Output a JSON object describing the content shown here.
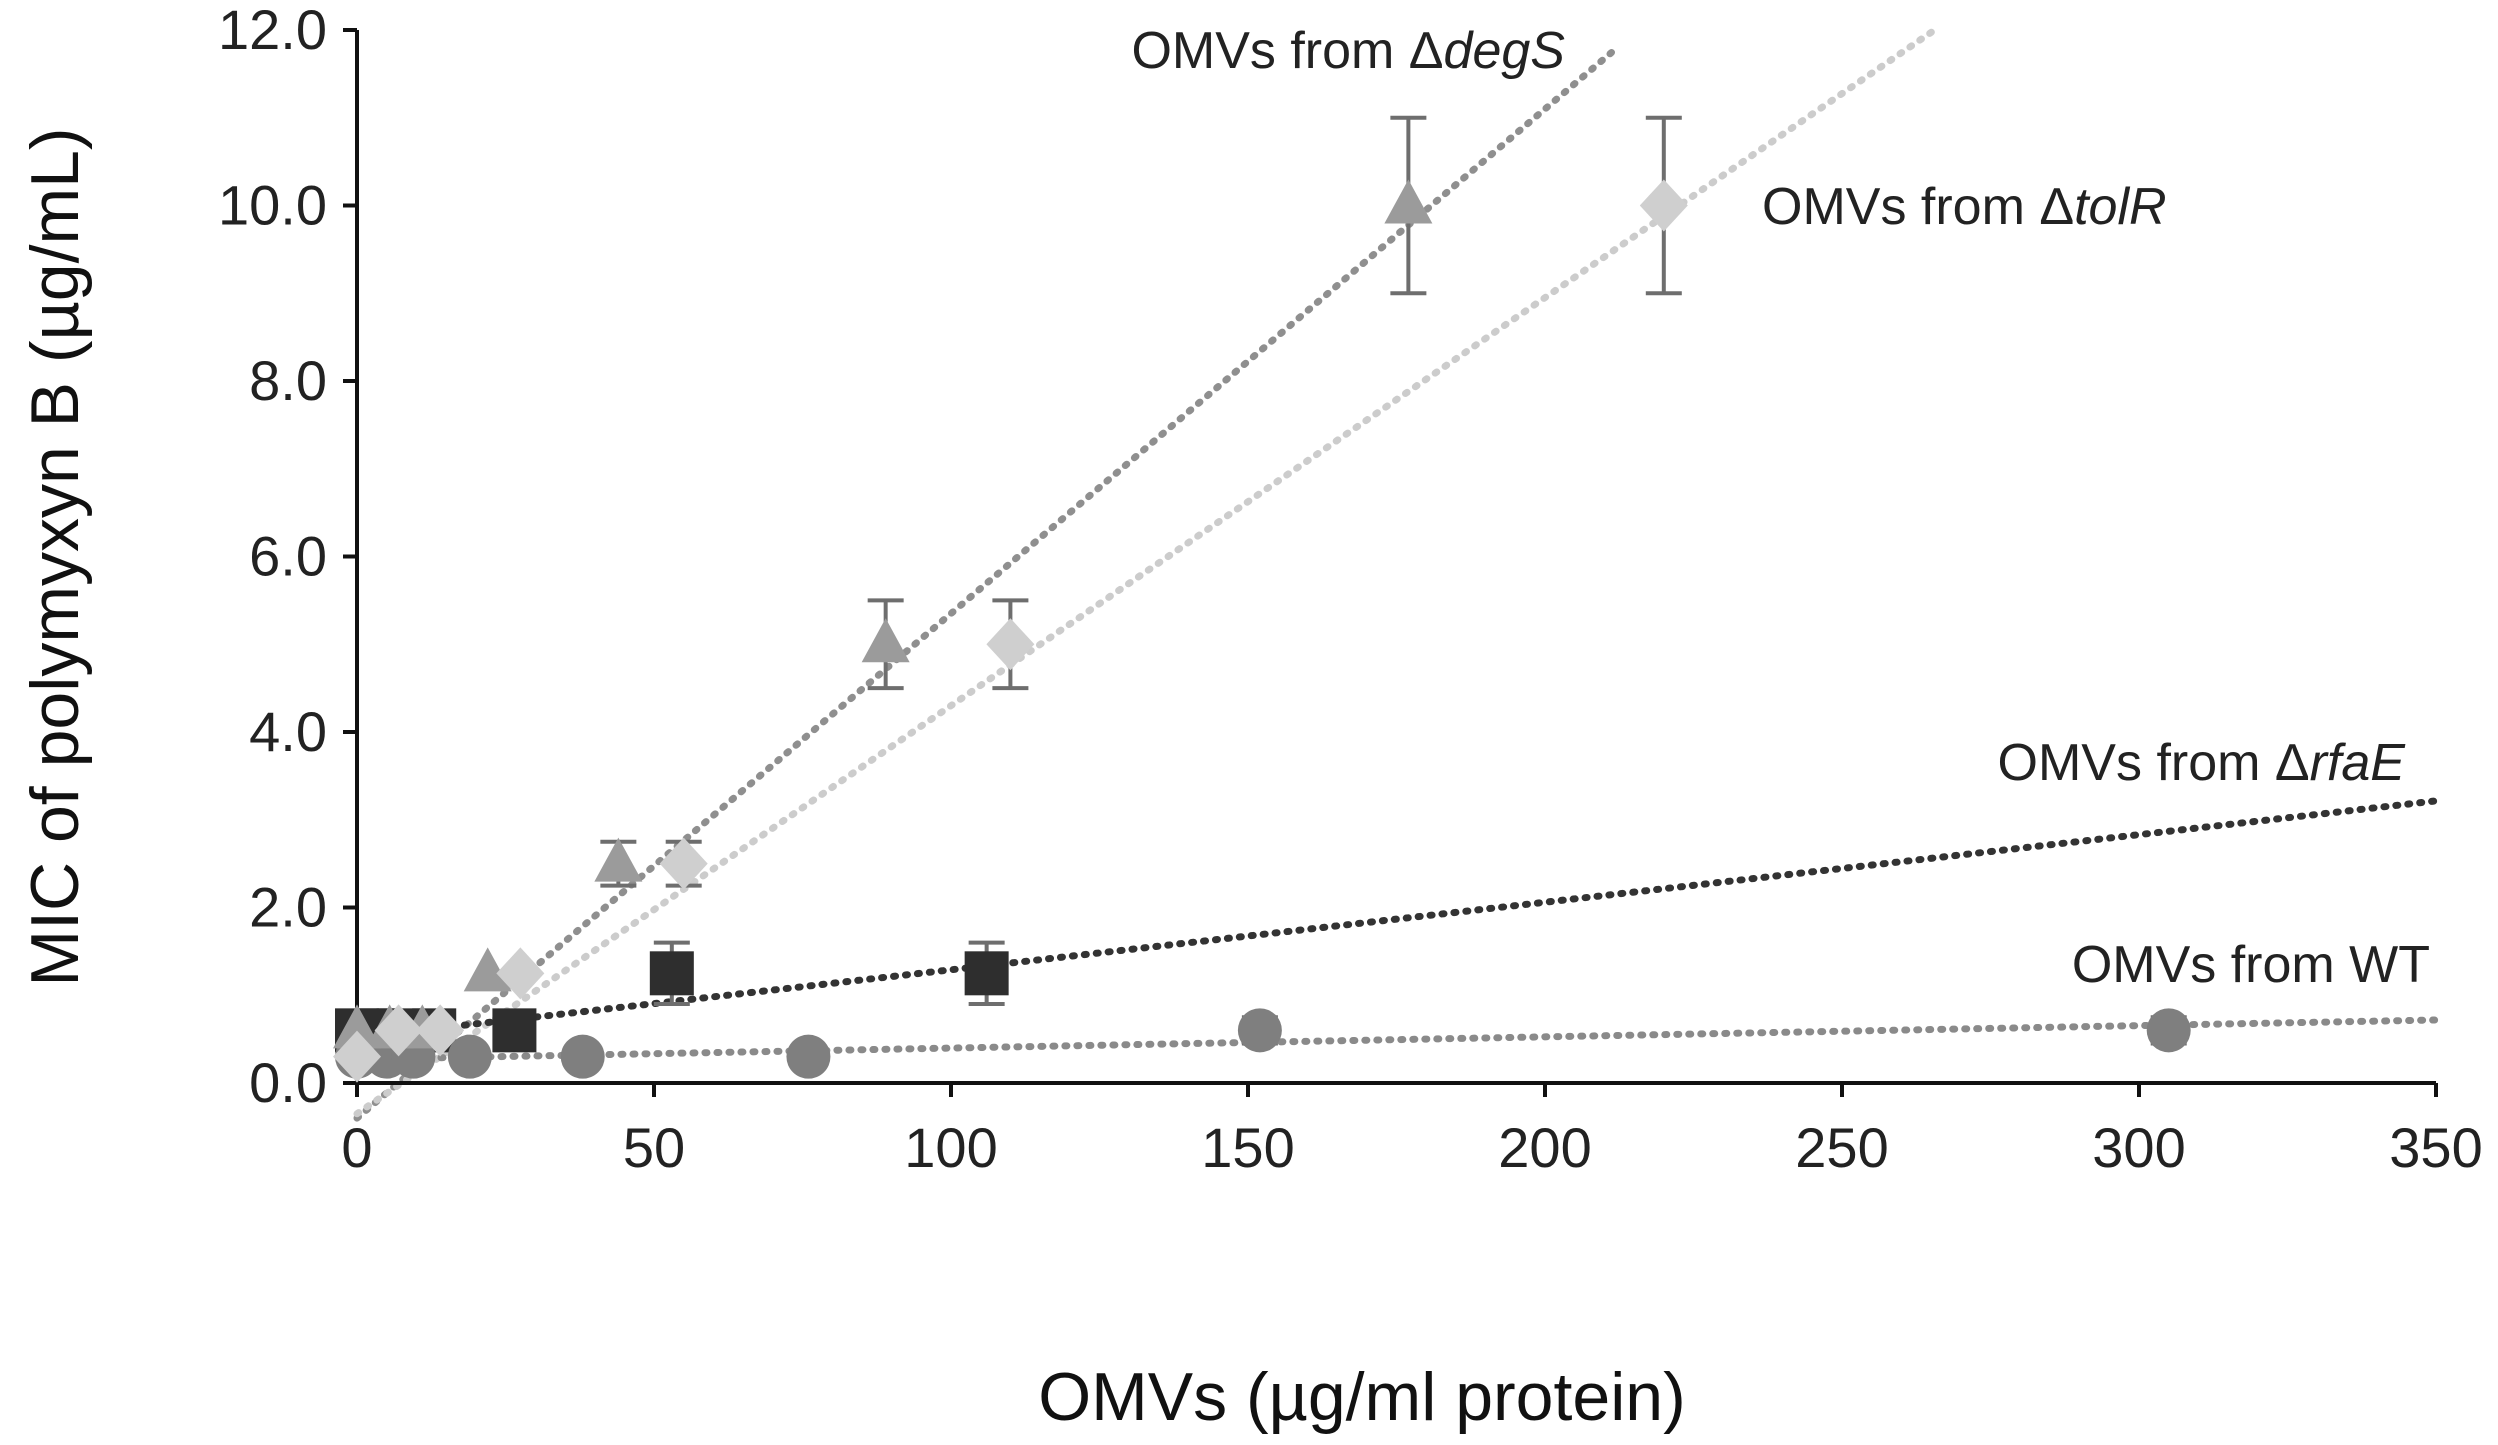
{
  "chart_data": {
    "type": "scatter",
    "title": "",
    "xlabel": "OMVs (µg/ml protein)",
    "ylabel": "MIC of polymyxyn B (µg/mL)",
    "xlim": [
      0,
      350
    ],
    "ylim": [
      0,
      12
    ],
    "x_ticks": [
      "0",
      "50",
      "100",
      "150",
      "200",
      "250",
      "300",
      "350"
    ],
    "y_ticks": [
      "0.0",
      "2.0",
      "4.0",
      "6.0",
      "8.0",
      "10.0",
      "12.0"
    ],
    "grid": false,
    "series": [
      {
        "name": "OMVs from ΔdegS",
        "label_prefix": "OMVs from Δ",
        "label_italic": "degS",
        "marker": "triangle",
        "color": "#9b9b9b",
        "trend_color": "#8f8f8f",
        "trend": {
          "slope": 0.0575,
          "intercept": -0.4,
          "x_start": 0,
          "x_end": 211.5
        },
        "points": [
          {
            "x": 0,
            "y": 0.6,
            "err": 0
          },
          {
            "x": 5.5,
            "y": 0.6,
            "err": 0
          },
          {
            "x": 11,
            "y": 0.6,
            "err": 0
          },
          {
            "x": 22,
            "y": 1.25,
            "err": 0
          },
          {
            "x": 44,
            "y": 2.5,
            "err": 0.25
          },
          {
            "x": 89,
            "y": 5.0,
            "err": 0.5
          },
          {
            "x": 177,
            "y": 10.0,
            "err": 1.0
          }
        ]
      },
      {
        "name": "OMVs from ΔtolR",
        "label_prefix": "OMVs from Δ",
        "label_italic": "tolR",
        "marker": "diamond",
        "color": "#cfcfcf",
        "trend_color": "#cccccc",
        "trend": {
          "slope": 0.0465,
          "intercept": -0.35,
          "x_start": 0,
          "x_end": 265.6
        },
        "points": [
          {
            "x": 0,
            "y": 0.3,
            "err": 0
          },
          {
            "x": 7,
            "y": 0.6,
            "err": 0
          },
          {
            "x": 14,
            "y": 0.6,
            "err": 0
          },
          {
            "x": 27.5,
            "y": 1.25,
            "err": 0
          },
          {
            "x": 55,
            "y": 2.5,
            "err": 0.25
          },
          {
            "x": 110,
            "y": 5.0,
            "err": 0.5
          },
          {
            "x": 220,
            "y": 10.0,
            "err": 1.0
          }
        ]
      },
      {
        "name": "OMVs from ΔrfaE",
        "label_prefix": "OMVs from Δ",
        "label_italic": "rfaE",
        "marker": "square",
        "color": "#2e2e2e",
        "trend_color": "#333333",
        "trend": {
          "slope": 0.0077,
          "intercept": 0.52,
          "x_start": 0,
          "x_end": 350
        },
        "points": [
          {
            "x": 0,
            "y": 0.6,
            "err": 0
          },
          {
            "x": 3.5,
            "y": 0.6,
            "err": 0
          },
          {
            "x": 7,
            "y": 0.6,
            "err": 0
          },
          {
            "x": 13,
            "y": 0.6,
            "err": 0
          },
          {
            "x": 26.5,
            "y": 0.6,
            "err": 0
          },
          {
            "x": 53,
            "y": 1.25,
            "err": 0.35
          },
          {
            "x": 106,
            "y": 1.25,
            "err": 0.35
          }
        ]
      },
      {
        "name": "OMVs from WT",
        "label_prefix": "OMVs from WT",
        "label_italic": "",
        "marker": "circle",
        "color": "#7f7f7f",
        "trend_color": "#8a8a8a",
        "trend": {
          "slope": 0.00128,
          "intercept": 0.27,
          "x_start": 0,
          "x_end": 350
        },
        "points": [
          {
            "x": 0,
            "y": 0.3,
            "err": 0
          },
          {
            "x": 5,
            "y": 0.3,
            "err": 0
          },
          {
            "x": 9.5,
            "y": 0.3,
            "err": 0
          },
          {
            "x": 19,
            "y": 0.3,
            "err": 0
          },
          {
            "x": 38,
            "y": 0.3,
            "err": 0
          },
          {
            "x": 76,
            "y": 0.3,
            "err": 0
          },
          {
            "x": 152,
            "y": 0.6,
            "err": 0.15
          },
          {
            "x": 305,
            "y": 0.6,
            "err": 0.15
          }
        ]
      }
    ]
  }
}
